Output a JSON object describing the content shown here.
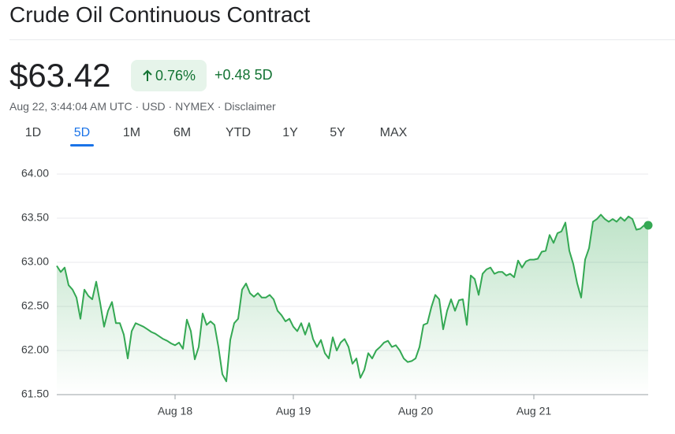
{
  "header": {
    "title": "Crude Oil Continuous Contract",
    "price": "$63.42",
    "change_percent": "0.76%",
    "change_abs": "+0.48",
    "period": "5D",
    "meta": "Aug 22, 3:44:04 AM UTC · USD · NYMEX ·",
    "disclaimer": "Disclaimer"
  },
  "tabs": [
    "1D",
    "5D",
    "1M",
    "6M",
    "YTD",
    "1Y",
    "5Y",
    "MAX"
  ],
  "selected_tab": 1,
  "chart_data": {
    "type": "line",
    "color": "#34a853",
    "categories": [
      null,
      null,
      null,
      null,
      null,
      null,
      null,
      null,
      null,
      null,
      null,
      null,
      null,
      null,
      null,
      null,
      null,
      null,
      null,
      null,
      null,
      null,
      null,
      null,
      null,
      null,
      null,
      null,
      null,
      null,
      "Aug 18",
      null,
      null,
      null,
      null,
      null,
      null,
      null,
      null,
      null,
      null,
      null,
      null,
      null,
      null,
      null,
      null,
      null,
      null,
      null,
      null,
      null,
      null,
      null,
      null,
      null,
      null,
      null,
      null,
      null,
      "Aug 19",
      null,
      null,
      null,
      null,
      null,
      null,
      null,
      null,
      null,
      null,
      null,
      null,
      null,
      null,
      null,
      null,
      null,
      null,
      null,
      null,
      null,
      null,
      null,
      null,
      null,
      null,
      null,
      null,
      null,
      null,
      "Aug 20",
      null,
      null,
      null,
      null,
      null,
      null,
      null,
      null,
      null,
      null,
      null,
      null,
      null,
      null,
      null,
      null,
      null,
      null,
      null,
      null,
      null,
      null,
      null,
      null,
      null,
      null,
      null,
      null,
      null,
      "Aug 21",
      null,
      null,
      null,
      null,
      null,
      null,
      null,
      null,
      null,
      null,
      null,
      null,
      null,
      null,
      null,
      null,
      null,
      null,
      null,
      null,
      null,
      null,
      null,
      null,
      null,
      null,
      null,
      null,
      null
    ],
    "values": [
      62.96,
      62.89,
      62.94,
      62.74,
      62.69,
      62.6,
      62.36,
      62.69,
      62.62,
      62.58,
      62.78,
      62.54,
      62.27,
      62.45,
      62.55,
      62.31,
      62.31,
      62.18,
      61.91,
      62.22,
      62.31,
      62.29,
      62.27,
      62.24,
      62.21,
      62.19,
      62.16,
      62.13,
      62.11,
      62.08,
      62.06,
      62.09,
      62.02,
      62.35,
      62.22,
      61.9,
      62.04,
      62.42,
      62.29,
      62.33,
      62.29,
      62.04,
      61.73,
      61.65,
      62.12,
      62.31,
      62.36,
      62.69,
      62.76,
      62.65,
      62.61,
      62.65,
      62.6,
      62.6,
      62.63,
      62.58,
      62.45,
      62.4,
      62.33,
      62.36,
      62.27,
      62.22,
      62.31,
      62.18,
      62.31,
      62.13,
      62.04,
      62.12,
      61.97,
      61.91,
      62.15,
      62.0,
      62.09,
      62.13,
      62.04,
      61.85,
      61.91,
      61.69,
      61.78,
      61.97,
      61.91,
      62.0,
      62.04,
      62.09,
      62.11,
      62.04,
      62.06,
      62.0,
      61.91,
      61.87,
      61.88,
      61.91,
      62.04,
      62.29,
      62.31,
      62.49,
      62.63,
      62.58,
      62.24,
      62.45,
      62.58,
      62.45,
      62.57,
      62.58,
      62.29,
      62.85,
      62.81,
      62.63,
      62.87,
      62.92,
      62.94,
      62.87,
      62.89,
      62.89,
      62.85,
      62.87,
      62.83,
      63.02,
      62.94,
      63.01,
      63.03,
      63.03,
      63.04,
      63.12,
      63.13,
      63.31,
      63.22,
      63.33,
      63.35,
      63.45,
      63.13,
      62.98,
      62.76,
      62.6,
      63.03,
      63.16,
      63.46,
      63.49,
      63.54,
      63.49,
      63.46,
      63.49,
      63.46,
      63.51,
      63.47,
      63.52,
      63.49,
      63.37,
      63.38,
      63.42,
      63.42
    ],
    "ylim": [
      61.5,
      64
    ],
    "yticks": [
      {
        "value": 61.5,
        "label": "61.50"
      },
      {
        "value": 62,
        "label": "62.00"
      },
      {
        "value": 62.5,
        "label": "62.50"
      },
      {
        "value": 63,
        "label": "63.00"
      },
      {
        "value": 63.5,
        "label": "63.50"
      },
      {
        "value": 64,
        "label": "64.00"
      }
    ],
    "grid": true
  }
}
